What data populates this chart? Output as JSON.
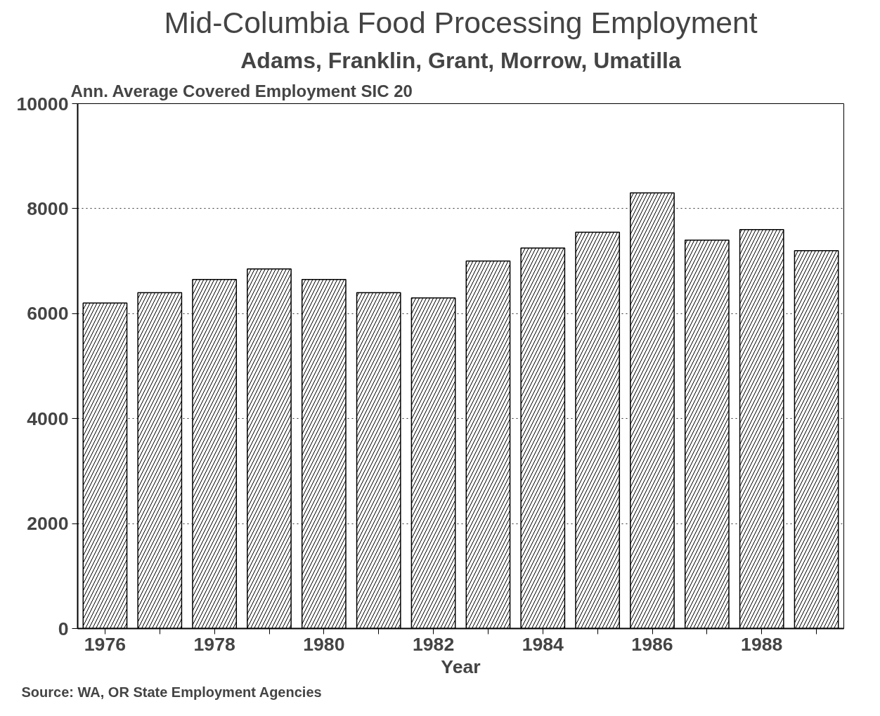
{
  "chart_data": {
    "type": "bar",
    "title": "Mid-Columbia Food Processing Employment",
    "subtitle": "Adams, Franklin, Grant, Morrow, Umatilla",
    "ylabel": "Ann. Average Covered Employment SIC 20",
    "xlabel": "Year",
    "x": [
      1976,
      1977,
      1978,
      1979,
      1980,
      1981,
      1982,
      1983,
      1984,
      1985,
      1986,
      1987,
      1988,
      1989
    ],
    "values": [
      6200,
      6400,
      6650,
      6850,
      6650,
      6400,
      6300,
      7000,
      7250,
      7550,
      8300,
      7400,
      7600,
      7200
    ],
    "color": "#ffffff",
    "xlim": [
      1975.5,
      1989.5
    ],
    "xticks": [
      1976,
      {
        "value": 1977,
        "label": null
      },
      1978,
      {
        "value": 1979,
        "label": null
      },
      1980,
      {
        "value": 1981,
        "label": null
      },
      1982,
      {
        "value": 1983,
        "label": null
      },
      1984,
      {
        "value": 1985,
        "label": null
      },
      1986,
      {
        "value": 1987,
        "label": null
      },
      1988,
      {
        "value": 1989,
        "label": null
      }
    ],
    "ylim": [
      0,
      10000
    ],
    "yticks": [
      0,
      2000,
      4000,
      6000,
      8000,
      10000
    ],
    "grid": "y",
    "annotations": [
      "Source: WA, OR State Employment Agencies"
    ]
  }
}
